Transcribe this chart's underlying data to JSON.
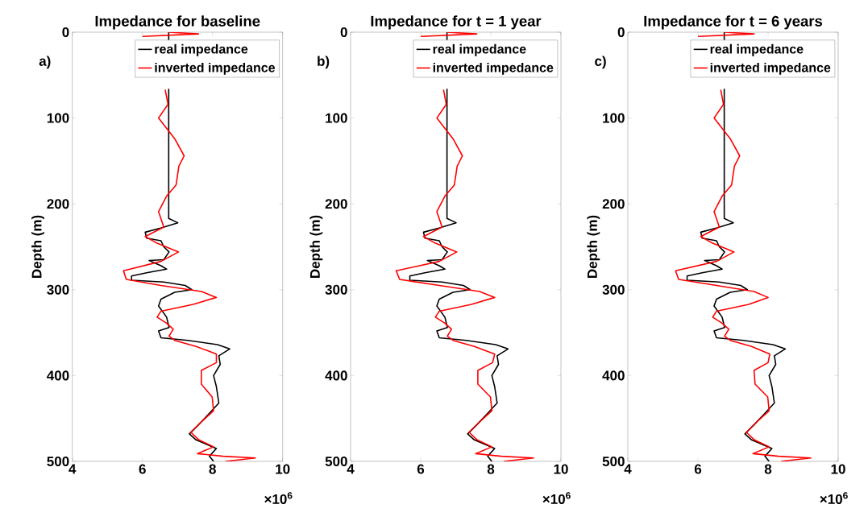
{
  "chart_data": [
    {
      "type": "line",
      "title": "Impedance for baseline",
      "ylabel": "Depth (m)",
      "annotations": [
        "a)",
        "×10$^{6}$"
      ],
      "xlim": [
        4,
        10
      ],
      "ylim": [
        500,
        0
      ],
      "xticks": [
        4,
        6,
        8,
        10
      ],
      "yticks": [
        0,
        100,
        200,
        300,
        400,
        500
      ],
      "legend": "top right",
      "series": [
        {
          "name": "real impedance",
          "color": "#000000",
          "x": [
            6.75,
            6.75,
            null,
            6.75,
            6.75,
            7.01,
            6.54,
            6.08,
            6.12,
            6.53,
            6.61,
            6.76,
            6.61,
            6.19,
            6.53,
            6.69,
            6.15,
            5.69,
            5.69,
            6.61,
            7.22,
            7.41,
            6.92,
            6.53,
            6.46,
            6.69,
            6.76,
            6.46,
            6.53,
            7.3,
            8.14,
            8.49,
            8.18,
            8.22,
            8.03,
            8.11,
            8.18,
            7.91,
            7.61,
            7.34,
            7.53,
            8.11,
            7.91,
            8.03
          ],
          "values": [
            0,
            10,
            null,
            66,
            217,
            222,
            228,
            233,
            240,
            243,
            250,
            256,
            265,
            266,
            272,
            276,
            280,
            284,
            289,
            291,
            295,
            300,
            303,
            311,
            319,
            332,
            344,
            348,
            356,
            359,
            364,
            369,
            377,
            387,
            400,
            413,
            432,
            444,
            457,
            468,
            475,
            485,
            494,
            500
          ]
        },
        {
          "name": "inverted impedance",
          "color": "#ff0000",
          "x": [
            6.75,
            7.6,
            6.0,
            null,
            6.65,
            6.73,
            6.46,
            6.92,
            7.19,
            7.04,
            6.96,
            6.69,
            6.46,
            6.61,
            6.08,
            6.38,
            7.03,
            6.53,
            5.46,
            5.54,
            6.53,
            7.68,
            8.11,
            7.45,
            6.53,
            6.42,
            6.69,
            6.88,
            6.76,
            6.92,
            7.53,
            8.11,
            8.11,
            7.68,
            7.68,
            7.99,
            8.03,
            7.68,
            7.38,
            7.61,
            8.03,
            7.57,
            8.3,
            9.22,
            8.37
          ],
          "values": [
            0,
            2,
            5,
            null,
            67,
            84,
            100,
            124,
            144,
            156,
            178,
            191,
            209,
            227,
            238,
            245,
            256,
            267,
            278,
            288,
            295,
            302,
            309,
            317,
            325,
            332,
            339,
            346,
            354,
            359,
            366,
            375,
            385,
            394,
            410,
            425,
            441,
            454,
            466,
            475,
            483,
            491,
            494,
            496,
            500
          ]
        }
      ]
    },
    {
      "type": "line",
      "title": "Impedance for t = 1 year",
      "ylabel": "Depth (m)",
      "annotations": [
        "b)",
        "×10$^{6}$"
      ],
      "xlim": [
        4,
        10
      ],
      "ylim": [
        500,
        0
      ],
      "xticks": [
        4,
        6,
        8,
        10
      ],
      "yticks": [
        0,
        100,
        200,
        300,
        400,
        500
      ],
      "legend": "top right",
      "series": [
        {
          "name": "real impedance",
          "color": "#000000",
          "x": [
            6.75,
            6.75,
            null,
            6.75,
            6.75,
            7.01,
            6.54,
            6.08,
            6.12,
            6.53,
            6.61,
            6.76,
            6.61,
            6.19,
            6.53,
            6.69,
            6.15,
            5.69,
            5.69,
            6.61,
            7.22,
            7.41,
            6.92,
            6.53,
            6.46,
            6.69,
            6.76,
            6.46,
            6.53,
            7.3,
            8.14,
            8.49,
            8.18,
            8.22,
            8.03,
            8.11,
            8.18,
            7.91,
            7.61,
            7.34,
            7.53,
            8.11,
            7.91,
            8.03
          ],
          "values": [
            0,
            10,
            null,
            66,
            217,
            222,
            228,
            233,
            240,
            243,
            250,
            256,
            265,
            266,
            272,
            276,
            280,
            284,
            289,
            291,
            295,
            300,
            303,
            311,
            319,
            332,
            344,
            348,
            356,
            359,
            364,
            369,
            377,
            387,
            400,
            413,
            432,
            444,
            457,
            468,
            475,
            485,
            494,
            500
          ]
        },
        {
          "name": "inverted impedance",
          "color": "#ff0000",
          "x": [
            6.75,
            7.6,
            6.0,
            null,
            6.65,
            6.73,
            6.46,
            6.92,
            7.19,
            7.04,
            6.96,
            6.69,
            6.46,
            6.61,
            6.08,
            6.38,
            7.03,
            6.53,
            5.3,
            5.4,
            6.53,
            7.68,
            8.11,
            7.45,
            6.53,
            6.42,
            6.69,
            6.88,
            6.76,
            6.92,
            7.53,
            8.11,
            8.05,
            7.63,
            7.63,
            7.99,
            8.03,
            7.68,
            7.38,
            7.61,
            8.03,
            7.57,
            8.3,
            9.22,
            8.37
          ],
          "values": [
            0,
            2,
            5,
            null,
            67,
            84,
            100,
            124,
            144,
            156,
            178,
            191,
            209,
            227,
            238,
            245,
            256,
            267,
            278,
            288,
            295,
            302,
            309,
            317,
            325,
            332,
            339,
            346,
            354,
            359,
            366,
            375,
            385,
            394,
            410,
            425,
            441,
            454,
            466,
            475,
            483,
            491,
            494,
            496,
            500
          ]
        }
      ]
    },
    {
      "type": "line",
      "title": "Impedance for t = 6 years",
      "ylabel": "Depth (m)",
      "annotations": [
        "c)",
        "×10$^{6}$"
      ],
      "xlim": [
        4,
        10
      ],
      "ylim": [
        500,
        0
      ],
      "xticks": [
        4,
        6,
        8,
        10
      ],
      "yticks": [
        0,
        100,
        200,
        300,
        400,
        500
      ],
      "legend": "top right",
      "series": [
        {
          "name": "real impedance",
          "color": "#000000",
          "x": [
            6.75,
            6.75,
            null,
            6.75,
            6.75,
            7.01,
            6.54,
            6.08,
            6.12,
            6.53,
            6.61,
            6.76,
            6.61,
            6.19,
            6.53,
            6.69,
            6.15,
            5.69,
            5.69,
            6.61,
            7.22,
            7.41,
            6.92,
            6.53,
            6.46,
            6.69,
            6.76,
            6.46,
            6.53,
            7.3,
            8.14,
            8.49,
            8.18,
            8.22,
            8.03,
            8.11,
            8.18,
            7.91,
            7.61,
            7.34,
            7.53,
            8.11,
            7.91,
            8.03
          ],
          "values": [
            0,
            10,
            null,
            66,
            217,
            222,
            228,
            233,
            240,
            243,
            250,
            256,
            265,
            266,
            272,
            276,
            280,
            284,
            289,
            291,
            295,
            300,
            303,
            311,
            319,
            332,
            344,
            348,
            356,
            359,
            364,
            369,
            377,
            387,
            400,
            413,
            432,
            444,
            457,
            468,
            475,
            485,
            494,
            500
          ]
        },
        {
          "name": "inverted impedance",
          "color": "#ff0000",
          "x": [
            6.75,
            7.6,
            6.0,
            null,
            6.65,
            6.73,
            6.46,
            6.92,
            7.19,
            7.04,
            6.96,
            6.69,
            6.46,
            6.61,
            6.08,
            6.38,
            7.03,
            6.53,
            5.36,
            5.45,
            6.53,
            7.6,
            8.0,
            7.45,
            6.53,
            6.42,
            6.69,
            6.88,
            6.76,
            6.92,
            7.53,
            8.05,
            8.0,
            7.6,
            7.63,
            7.99,
            8.03,
            7.68,
            7.38,
            7.61,
            8.03,
            7.57,
            8.3,
            9.22,
            8.37
          ],
          "values": [
            0,
            2,
            5,
            null,
            67,
            84,
            100,
            124,
            144,
            156,
            178,
            191,
            209,
            227,
            238,
            245,
            256,
            267,
            278,
            288,
            295,
            302,
            309,
            317,
            325,
            332,
            339,
            346,
            354,
            359,
            366,
            375,
            385,
            394,
            410,
            425,
            441,
            454,
            466,
            475,
            483,
            491,
            494,
            496,
            500
          ]
        }
      ]
    }
  ]
}
